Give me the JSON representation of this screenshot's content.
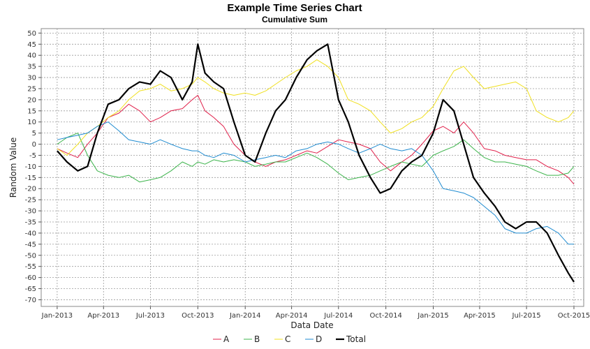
{
  "chart_data": {
    "type": "line",
    "title": "Example Time Series Chart",
    "subtitle": "Cumulative Sum",
    "xlabel": "Data Date",
    "ylabel": "Random Value",
    "x_range": [
      "2012-12-01",
      "2015-10-20"
    ],
    "ylim": [
      -73,
      52
    ],
    "y_ticks": [
      50,
      45,
      40,
      35,
      30,
      25,
      20,
      15,
      10,
      5,
      0,
      -5,
      -10,
      -15,
      -20,
      -25,
      -30,
      -35,
      -40,
      -45,
      -50,
      -55,
      -60,
      -65,
      -70
    ],
    "x_ticks": [
      {
        "label": "Jan-2013",
        "date": "2013-01-01"
      },
      {
        "label": "Apr-2013",
        "date": "2013-04-01"
      },
      {
        "label": "Jul-2013",
        "date": "2013-07-01"
      },
      {
        "label": "Oct-2013",
        "date": "2013-10-01"
      },
      {
        "label": "Jan-2014",
        "date": "2014-01-01"
      },
      {
        "label": "Apr-2014",
        "date": "2014-04-01"
      },
      {
        "label": "Jul-2014",
        "date": "2014-07-01"
      },
      {
        "label": "Oct-2014",
        "date": "2014-10-01"
      },
      {
        "label": "Jan-2015",
        "date": "2015-01-01"
      },
      {
        "label": "Apr-2015",
        "date": "2015-04-01"
      },
      {
        "label": "Jul-2015",
        "date": "2015-07-01"
      },
      {
        "label": "Oct-2015",
        "date": "2015-10-01"
      }
    ],
    "grid": true,
    "legend_position": "bottom",
    "series": [
      {
        "name": "A",
        "color": "#e0204a",
        "width": 1,
        "x": [
          "2013-01-01",
          "2013-01-20",
          "2013-02-10",
          "2013-03-01",
          "2013-03-20",
          "2013-04-10",
          "2013-05-01",
          "2013-05-20",
          "2013-06-10",
          "2013-07-01",
          "2013-07-20",
          "2013-08-10",
          "2013-09-01",
          "2013-09-20",
          "2013-10-01",
          "2013-10-15",
          "2013-11-01",
          "2013-11-20",
          "2013-12-10",
          "2014-01-01",
          "2014-01-20",
          "2014-02-10",
          "2014-03-01",
          "2014-03-20",
          "2014-04-10",
          "2014-05-01",
          "2014-05-20",
          "2014-06-10",
          "2014-07-01",
          "2014-07-20",
          "2014-08-10",
          "2014-09-01",
          "2014-09-20",
          "2014-10-10",
          "2014-11-01",
          "2014-11-20",
          "2014-12-10",
          "2015-01-01",
          "2015-01-20",
          "2015-02-10",
          "2015-03-01",
          "2015-03-20",
          "2015-04-10",
          "2015-05-01",
          "2015-05-20",
          "2015-06-10",
          "2015-07-01",
          "2015-07-20",
          "2015-08-10",
          "2015-09-01",
          "2015-09-20",
          "2015-10-01"
        ],
        "y": [
          -2,
          -4,
          -6,
          0,
          5,
          12,
          14,
          18,
          15,
          10,
          12,
          15,
          16,
          20,
          22,
          15,
          12,
          8,
          0,
          -5,
          -8,
          -10,
          -8,
          -7,
          -5,
          -3,
          -4,
          -1,
          2,
          1,
          0,
          -2,
          -8,
          -12,
          -8,
          -5,
          0,
          6,
          8,
          5,
          10,
          5,
          -2,
          -3,
          -5,
          -6,
          -7,
          -7,
          -10,
          -12,
          -15,
          -18
        ]
      },
      {
        "name": "B",
        "color": "#3cb44b",
        "width": 1,
        "x": [
          "2013-01-01",
          "2013-01-20",
          "2013-02-10",
          "2013-03-01",
          "2013-03-20",
          "2013-04-10",
          "2013-05-01",
          "2013-05-20",
          "2013-06-10",
          "2013-07-01",
          "2013-07-20",
          "2013-08-10",
          "2013-09-01",
          "2013-09-20",
          "2013-10-01",
          "2013-10-15",
          "2013-11-01",
          "2013-11-20",
          "2013-12-10",
          "2014-01-01",
          "2014-01-20",
          "2014-02-10",
          "2014-03-01",
          "2014-03-20",
          "2014-04-10",
          "2014-05-01",
          "2014-05-20",
          "2014-06-10",
          "2014-07-01",
          "2014-07-20",
          "2014-08-10",
          "2014-09-01",
          "2014-09-20",
          "2014-10-10",
          "2014-11-01",
          "2014-11-20",
          "2014-12-10",
          "2015-01-01",
          "2015-01-20",
          "2015-02-10",
          "2015-03-01",
          "2015-03-20",
          "2015-04-10",
          "2015-05-01",
          "2015-05-20",
          "2015-06-10",
          "2015-07-01",
          "2015-07-20",
          "2015-08-10",
          "2015-09-01",
          "2015-09-20",
          "2015-10-01"
        ],
        "y": [
          0,
          3,
          5,
          -5,
          -12,
          -14,
          -15,
          -14,
          -17,
          -16,
          -15,
          -12,
          -8,
          -10,
          -8,
          -9,
          -7,
          -8,
          -7,
          -8,
          -10,
          -9,
          -8,
          -8,
          -6,
          -4,
          -6,
          -9,
          -13,
          -16,
          -15,
          -14,
          -12,
          -10,
          -8,
          -9,
          -10,
          -5,
          -3,
          -1,
          2,
          -2,
          -6,
          -8,
          -8,
          -9,
          -10,
          -12,
          -14,
          -14,
          -13,
          -10
        ]
      },
      {
        "name": "C",
        "color": "#f0e020",
        "width": 1,
        "x": [
          "2013-01-01",
          "2013-01-20",
          "2013-02-10",
          "2013-03-01",
          "2013-03-20",
          "2013-04-10",
          "2013-05-01",
          "2013-05-20",
          "2013-06-10",
          "2013-07-01",
          "2013-07-20",
          "2013-08-10",
          "2013-09-01",
          "2013-09-20",
          "2013-10-01",
          "2013-10-15",
          "2013-11-01",
          "2013-11-20",
          "2013-12-10",
          "2014-01-01",
          "2014-01-20",
          "2014-02-10",
          "2014-03-01",
          "2014-03-20",
          "2014-04-10",
          "2014-05-01",
          "2014-05-20",
          "2014-06-10",
          "2014-07-01",
          "2014-07-20",
          "2014-08-10",
          "2014-09-01",
          "2014-09-20",
          "2014-10-10",
          "2014-11-01",
          "2014-11-20",
          "2014-12-10",
          "2015-01-01",
          "2015-01-20",
          "2015-02-10",
          "2015-03-01",
          "2015-03-20",
          "2015-04-10",
          "2015-05-01",
          "2015-05-20",
          "2015-06-10",
          "2015-07-01",
          "2015-07-20",
          "2015-08-10",
          "2015-09-01",
          "2015-09-20",
          "2015-10-01"
        ],
        "y": [
          -2,
          -5,
          0,
          5,
          8,
          12,
          15,
          20,
          24,
          25,
          27,
          24,
          25,
          27,
          30,
          28,
          25,
          23,
          22,
          23,
          22,
          24,
          27,
          30,
          33,
          35,
          38,
          35,
          30,
          20,
          18,
          15,
          10,
          5,
          7,
          10,
          12,
          17,
          25,
          33,
          35,
          30,
          25,
          26,
          27,
          28,
          25,
          15,
          12,
          10,
          12,
          15
        ]
      },
      {
        "name": "D",
        "color": "#1f8bd0",
        "width": 1,
        "x": [
          "2013-01-01",
          "2013-01-20",
          "2013-02-10",
          "2013-03-01",
          "2013-03-20",
          "2013-04-10",
          "2013-05-01",
          "2013-05-20",
          "2013-06-10",
          "2013-07-01",
          "2013-07-20",
          "2013-08-10",
          "2013-09-01",
          "2013-09-20",
          "2013-10-01",
          "2013-10-15",
          "2013-11-01",
          "2013-11-20",
          "2013-12-10",
          "2014-01-01",
          "2014-01-20",
          "2014-02-10",
          "2014-03-01",
          "2014-03-20",
          "2014-04-10",
          "2014-05-01",
          "2014-05-20",
          "2014-06-10",
          "2014-07-01",
          "2014-07-20",
          "2014-08-10",
          "2014-09-01",
          "2014-09-20",
          "2014-10-10",
          "2014-11-01",
          "2014-11-20",
          "2014-12-10",
          "2015-01-01",
          "2015-01-20",
          "2015-02-10",
          "2015-03-01",
          "2015-03-20",
          "2015-04-10",
          "2015-05-01",
          "2015-05-20",
          "2015-06-10",
          "2015-07-01",
          "2015-07-20",
          "2015-08-10",
          "2015-09-01",
          "2015-09-20",
          "2015-10-01"
        ],
        "y": [
          2,
          3,
          4,
          5,
          8,
          10,
          6,
          2,
          1,
          0,
          2,
          0,
          -2,
          -3,
          -3,
          -5,
          -6,
          -4,
          -5,
          -8,
          -7,
          -6,
          -5,
          -6,
          -3,
          -2,
          0,
          1,
          0,
          -2,
          -4,
          -2,
          0,
          -2,
          -3,
          -2,
          -5,
          -12,
          -20,
          -21,
          -22,
          -24,
          -28,
          -32,
          -38,
          -40,
          -40,
          -38,
          -37,
          -40,
          -45,
          -45
        ]
      },
      {
        "name": "Total",
        "color": "#000000",
        "width": 2.2,
        "x": [
          "2013-01-01",
          "2013-01-20",
          "2013-02-10",
          "2013-03-01",
          "2013-03-20",
          "2013-04-10",
          "2013-05-01",
          "2013-05-20",
          "2013-06-10",
          "2013-07-01",
          "2013-07-20",
          "2013-08-10",
          "2013-09-01",
          "2013-09-20",
          "2013-10-01",
          "2013-10-15",
          "2013-11-01",
          "2013-11-20",
          "2013-12-10",
          "2014-01-01",
          "2014-01-20",
          "2014-02-10",
          "2014-03-01",
          "2014-03-20",
          "2014-04-10",
          "2014-05-01",
          "2014-05-20",
          "2014-06-10",
          "2014-07-01",
          "2014-07-20",
          "2014-08-10",
          "2014-09-01",
          "2014-09-20",
          "2014-10-10",
          "2014-11-01",
          "2014-11-20",
          "2014-12-10",
          "2015-01-01",
          "2015-01-20",
          "2015-02-10",
          "2015-03-01",
          "2015-03-20",
          "2015-04-10",
          "2015-05-01",
          "2015-05-20",
          "2015-06-10",
          "2015-07-01",
          "2015-07-20",
          "2015-08-10",
          "2015-09-01",
          "2015-09-20",
          "2015-10-01"
        ],
        "y": [
          -3,
          -8,
          -12,
          -10,
          5,
          18,
          20,
          25,
          28,
          27,
          33,
          30,
          20,
          28,
          45,
          32,
          28,
          25,
          10,
          -5,
          -8,
          5,
          15,
          20,
          30,
          38,
          42,
          45,
          20,
          10,
          -5,
          -15,
          -22,
          -20,
          -12,
          -8,
          -5,
          5,
          20,
          15,
          0,
          -15,
          -22,
          -28,
          -35,
          -38,
          -35,
          -35,
          -40,
          -50,
          -58,
          -62
        ]
      }
    ]
  }
}
